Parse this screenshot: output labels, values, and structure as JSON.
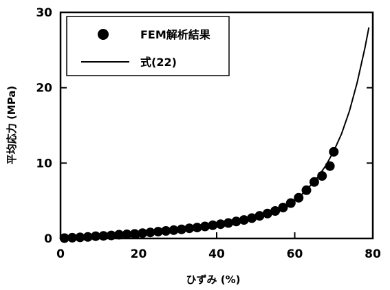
{
  "chart_data": {
    "type": "scatter",
    "xlabel": "ひずみ (%)",
    "ylabel": "平均応力 (MPa)",
    "xlim": [
      0,
      80
    ],
    "ylim": [
      0,
      30
    ],
    "x_ticks": [
      "0",
      "20",
      "40",
      "60",
      "80"
    ],
    "y_ticks": [
      "0",
      "10",
      "20",
      "30"
    ],
    "grid": false,
    "legend_position": "top-left",
    "series": [
      {
        "name": "FEM解析結果",
        "kind": "points",
        "color": "#000000",
        "x": [
          1,
          3,
          5,
          7,
          9,
          11,
          13,
          15,
          17,
          19,
          21,
          23,
          25,
          27,
          29,
          31,
          33,
          35,
          37,
          39,
          41,
          43,
          45,
          47,
          49,
          51,
          53,
          55,
          57,
          59,
          61,
          63,
          65,
          67,
          69,
          70
        ],
        "y": [
          0.05,
          0.1,
          0.15,
          0.2,
          0.3,
          0.35,
          0.4,
          0.5,
          0.55,
          0.6,
          0.7,
          0.8,
          0.9,
          1.0,
          1.1,
          1.2,
          1.35,
          1.45,
          1.6,
          1.75,
          1.9,
          2.05,
          2.25,
          2.45,
          2.7,
          3.0,
          3.3,
          3.65,
          4.1,
          4.7,
          5.4,
          6.4,
          7.5,
          8.3,
          9.6,
          11.5
        ]
      },
      {
        "name": "式(22)",
        "kind": "line",
        "color": "#000000",
        "x": [
          0,
          5,
          10,
          15,
          20,
          25,
          30,
          35,
          40,
          45,
          50,
          55,
          60,
          63,
          66,
          68,
          70,
          72,
          74,
          76,
          78,
          79
        ],
        "y": [
          0,
          0.15,
          0.3,
          0.5,
          0.65,
          0.85,
          1.15,
          1.45,
          1.8,
          2.25,
          2.9,
          3.7,
          5.0,
          6.4,
          8.2,
          9.7,
          11.6,
          13.9,
          16.9,
          20.7,
          25.3,
          28.0
        ]
      }
    ]
  }
}
